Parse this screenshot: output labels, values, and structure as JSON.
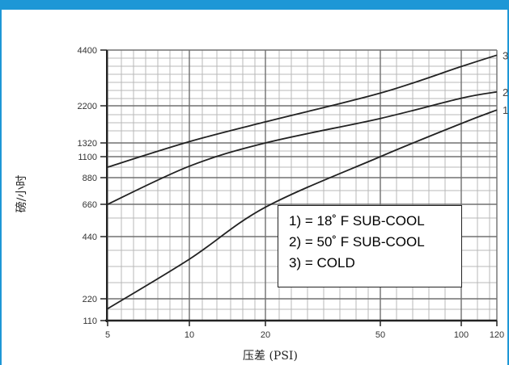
{
  "header": {
    "banner_text": ""
  },
  "chart_data": {
    "type": "line",
    "title": "",
    "xlabel": "压差 (PSI)",
    "ylabel": "磅/小时",
    "x_ticks": [
      "5",
      "10",
      "20",
      "50",
      "100",
      "120"
    ],
    "y_ticks": [
      "4400",
      "2200",
      "1320",
      "1100",
      "880",
      "660",
      "440",
      "220",
      "110"
    ],
    "series": [
      {
        "curve_label": "1",
        "x": [
          5,
          10,
          20,
          50,
          100,
          120
        ],
        "y": [
          170,
          360,
          640,
          1100,
          1780,
          2100
        ]
      },
      {
        "curve_label": "2",
        "x": [
          5,
          10,
          20,
          50,
          100,
          120
        ],
        "y": [
          660,
          1000,
          1320,
          1900,
          2500,
          2750
        ]
      },
      {
        "curve_label": "3",
        "x": [
          5,
          10,
          20,
          50,
          100,
          120
        ],
        "y": [
          990,
          1350,
          1820,
          2700,
          3750,
          4200
        ]
      }
    ],
    "legend": {
      "position": "bottom-right",
      "entries": [
        "1) = 18˚ F SUB-COOL",
        "2) = 50˚ F SUB-COOL",
        "3) = COLD"
      ]
    },
    "grid": true
  }
}
